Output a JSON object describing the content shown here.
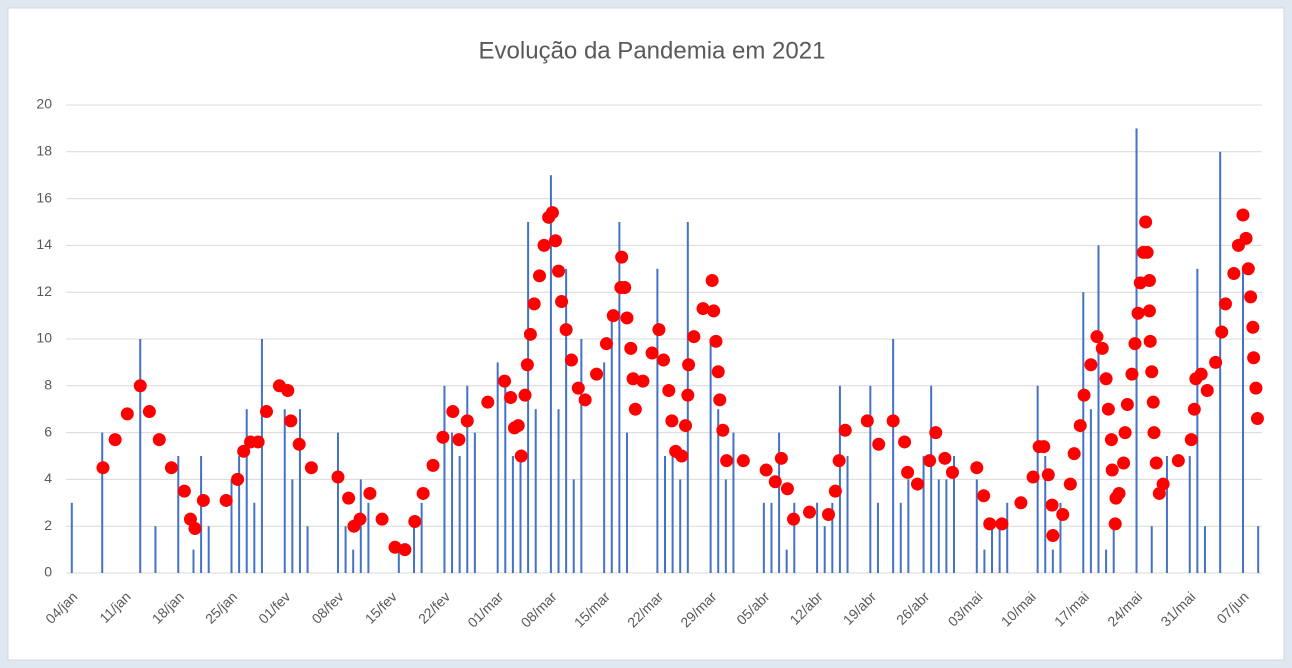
{
  "chart_data": {
    "type": "bar",
    "title": "Evolução da Pandemia em 2021",
    "categories": [
      "04/jan",
      null,
      null,
      null,
      null,
      null,
      null,
      "11/jan",
      null,
      null,
      null,
      null,
      null,
      null,
      "18/jan",
      null,
      null,
      null,
      null,
      null,
      null,
      "25/jan",
      null,
      null,
      null,
      null,
      null,
      null,
      "01/fev",
      null,
      null,
      null,
      null,
      null,
      null,
      "08/fev",
      null,
      null,
      null,
      null,
      null,
      null,
      "15/fev",
      null,
      null,
      null,
      null,
      null,
      null,
      "22/fev",
      null,
      null,
      null,
      null,
      null,
      null,
      "01/mar",
      null,
      null,
      null,
      null,
      null,
      null,
      "08/mar",
      null,
      null,
      null,
      null,
      null,
      null,
      "15/mar",
      null,
      null,
      null,
      null,
      null,
      null,
      "22/mar",
      null,
      null,
      null,
      null,
      null,
      null,
      "29/mar",
      null,
      null,
      null,
      null,
      null,
      null,
      "05/abr",
      null,
      null,
      null,
      null,
      null,
      null,
      "12/abr",
      null,
      null,
      null,
      null,
      null,
      null,
      "19/abr",
      null,
      null,
      null,
      null,
      null,
      null,
      "26/abr",
      null,
      null,
      null,
      null,
      null,
      null,
      "03/mai",
      null,
      null,
      null,
      null,
      null,
      null,
      "10/mai",
      null,
      null,
      null,
      null,
      null,
      null,
      "17/mai",
      null,
      null,
      null,
      null,
      null,
      null,
      "24/mai",
      null,
      null,
      null,
      null,
      null,
      null,
      "31/mai",
      null,
      null,
      null,
      null,
      null,
      null,
      "07/jun",
      null,
      null
    ],
    "series": [
      {
        "type": "bar",
        "color": "#4472c4",
        "values": [
          3,
          0,
          0,
          0,
          6,
          0,
          0,
          0,
          0,
          10,
          0,
          2,
          0,
          0,
          5,
          0,
          1,
          5,
          2,
          0,
          0,
          4,
          5,
          7,
          3,
          10,
          0,
          0,
          7,
          4,
          7,
          2,
          0,
          0,
          0,
          6,
          2,
          1,
          4,
          3,
          0,
          0,
          0,
          1,
          0,
          2,
          3,
          0,
          0,
          8,
          6,
          5,
          8,
          6,
          0,
          0,
          9,
          8,
          5,
          5,
          15,
          7,
          0,
          17,
          7,
          13,
          4,
          10,
          0,
          0,
          9,
          11,
          15,
          6,
          0,
          0,
          0,
          13,
          5,
          5,
          4,
          15,
          0,
          0,
          10,
          7,
          4,
          6,
          0,
          0,
          0,
          3,
          3,
          6,
          1,
          3,
          0,
          0,
          3,
          2,
          3,
          8,
          5,
          0,
          0,
          8,
          3,
          0,
          10,
          3,
          4,
          0,
          5,
          8,
          4,
          4,
          5,
          0,
          0,
          4,
          1,
          2,
          2,
          3,
          0,
          0,
          0,
          8,
          5,
          1,
          3,
          0,
          0,
          12,
          7,
          14,
          1,
          2,
          0,
          0,
          19,
          0,
          2,
          0,
          5,
          0,
          0,
          5,
          13,
          2,
          0,
          18,
          0,
          0,
          13,
          0,
          2
        ]
      },
      {
        "type": "scatter",
        "color": "#ff0000",
        "x": [
          4.1,
          5.7,
          7.3,
          9.0,
          10.2,
          11.5,
          13.1,
          14.8,
          15.6,
          16.2,
          17.3,
          20.3,
          21.8,
          22.6,
          23.5,
          24.5,
          25.6,
          27.3,
          28.4,
          28.8,
          29.9,
          31.5,
          35.0,
          36.4,
          37.1,
          37.9,
          39.2,
          40.8,
          42.5,
          43.8,
          45.1,
          46.2,
          47.5,
          48.8,
          50.1,
          50.9,
          52.0,
          54.7,
          56.9,
          57.7,
          58.2,
          58.7,
          59.1,
          59.6,
          59.9,
          60.3,
          60.8,
          61.5,
          62.1,
          62.7,
          63.2,
          63.6,
          64.0,
          64.4,
          65.0,
          65.7,
          66.6,
          67.5,
          69.0,
          70.3,
          71.2,
          72.2,
          72.3,
          72.7,
          73.0,
          73.5,
          73.8,
          74.1,
          75.1,
          76.3,
          77.2,
          77.8,
          78.5,
          78.9,
          79.4,
          80.2,
          80.7,
          81.0,
          81.1,
          81.8,
          83.0,
          84.2,
          84.4,
          84.7,
          85.0,
          85.2,
          85.6,
          86.1,
          88.3,
          91.3,
          92.5,
          93.3,
          94.1,
          94.9,
          97.0,
          99.5,
          100.4,
          100.9,
          101.7,
          104.6,
          106.1,
          108.0,
          109.5,
          109.9,
          111.2,
          112.8,
          113.6,
          114.8,
          115.8,
          119.0,
          119.9,
          120.7,
          122.3,
          124.8,
          126.4,
          127.2,
          127.8,
          128.4,
          128.9,
          129.0,
          130.3,
          131.3,
          131.8,
          132.6,
          133.1,
          134.0,
          134.8,
          135.5,
          136.0,
          136.3,
          136.7,
          136.8,
          137.3,
          137.2,
          137.7,
          138.3,
          138.5,
          138.8,
          139.4,
          139.8,
          140.2,
          140.5,
          140.9,
          141.2,
          141.4,
          141.7,
          141.7,
          141.8,
          142.0,
          142.2,
          142.3,
          142.6,
          143.0,
          143.5,
          145.5,
          147.2,
          147.6,
          147.8,
          148.5,
          149.3,
          150.4,
          151.2,
          151.7,
          152.8,
          153.4,
          154.0,
          154.4,
          154.7,
          155.0,
          155.3,
          155.4,
          155.7,
          155.9
        ],
        "values": [
          4.5,
          5.7,
          6.8,
          8.0,
          6.9,
          5.7,
          4.5,
          3.5,
          2.3,
          1.9,
          3.1,
          3.1,
          4.0,
          5.2,
          5.6,
          5.6,
          6.9,
          8.0,
          7.8,
          6.5,
          5.5,
          4.5,
          4.1,
          3.2,
          2.0,
          2.3,
          3.4,
          2.3,
          1.1,
          1.0,
          2.2,
          3.4,
          4.6,
          5.8,
          6.9,
          5.7,
          6.5,
          7.3,
          8.2,
          7.5,
          6.2,
          6.3,
          5.0,
          7.6,
          8.9,
          10.2,
          11.5,
          12.7,
          14.0,
          15.2,
          15.4,
          14.2,
          12.9,
          11.6,
          10.4,
          9.1,
          7.9,
          7.4,
          8.5,
          9.8,
          11.0,
          12.2,
          13.5,
          12.2,
          10.9,
          9.6,
          8.3,
          7.0,
          8.2,
          9.4,
          10.4,
          9.1,
          7.8,
          6.5,
          5.2,
          5.0,
          6.3,
          7.6,
          8.9,
          10.1,
          11.3,
          12.5,
          11.2,
          9.9,
          8.6,
          7.4,
          6.1,
          4.8,
          4.8,
          4.4,
          3.9,
          4.9,
          3.6,
          2.3,
          2.6,
          2.5,
          3.5,
          4.8,
          6.1,
          6.5,
          5.5,
          6.5,
          5.6,
          4.3,
          3.8,
          4.8,
          6.0,
          4.9,
          4.3,
          4.5,
          3.3,
          2.1,
          2.1,
          3.0,
          4.1,
          5.4,
          5.4,
          4.2,
          2.9,
          1.6,
          2.5,
          3.8,
          5.1,
          6.3,
          7.6,
          8.9,
          10.1,
          9.6,
          8.3,
          7.0,
          5.7,
          4.4,
          3.2,
          2.1,
          3.4,
          4.7,
          6.0,
          7.2,
          8.5,
          9.8,
          11.1,
          12.4,
          13.7,
          15.0,
          13.7,
          12.5,
          11.2,
          9.9,
          8.6,
          7.3,
          6.0,
          4.7,
          3.4,
          3.8,
          4.8,
          5.7,
          7.0,
          8.3,
          8.5,
          7.8,
          9.0,
          10.3,
          11.5,
          12.8,
          14.0,
          15.3,
          14.3,
          13.0,
          11.8,
          10.5,
          9.2,
          7.9,
          6.6
        ]
      }
    ],
    "ylim": [
      0,
      20
    ],
    "yticks": [
      0,
      2,
      4,
      6,
      8,
      10,
      12,
      14,
      16,
      18,
      20
    ],
    "grid": true
  }
}
